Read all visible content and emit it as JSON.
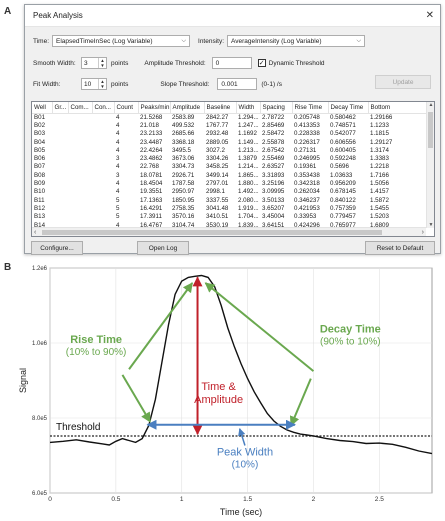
{
  "panels": {
    "a": "A",
    "b": "B"
  },
  "dialog": {
    "title": "Peak Analysis",
    "close": "✕",
    "time_label": "Time:",
    "time_value": "ElapsedTimeInSec (Log Variable)",
    "intensity_label": "Intensity:",
    "intensity_value": "AverageIntensity (Log Variable)",
    "smooth_width_label": "Smooth Width:",
    "smooth_width_value": "3",
    "smooth_width_units": "points",
    "amplitude_threshold_label": "Amplitude Threshold:",
    "amplitude_threshold_value": "0",
    "dynamic_threshold_label": "Dynamic Threshold",
    "dynamic_threshold_checked": true,
    "fit_width_label": "Fit Width:",
    "fit_width_value": "10",
    "fit_width_units": "points",
    "slope_threshold_label": "Slope Threshold:",
    "slope_threshold_value": "0.001",
    "slope_threshold_units": "(0-1) /s",
    "update_button": "Update",
    "configure_button": "Configure...",
    "open_log_button": "Open Log",
    "reset_button": "Reset to Default",
    "table": {
      "columns": [
        "Well",
        "Gr...",
        "Com...",
        "Con...",
        "Count",
        "Peaks/min",
        "Amplitude",
        "Baseline",
        "Width",
        "Spacing",
        "Rise Time",
        "Decay Time",
        "Bottom"
      ],
      "rows": [
        [
          "B01",
          "",
          "",
          "",
          "4",
          "21.5268",
          "2583.89",
          "2842.27",
          "1.294...",
          "2.78722",
          "0.205748",
          "0.580462",
          "1.29166"
        ],
        [
          "B02",
          "",
          "",
          "",
          "4",
          "21.018",
          "499.532",
          "1767.77",
          "1.247...",
          "2.85469",
          "0.413353",
          "0.748571",
          "1.1233"
        ],
        [
          "B03",
          "",
          "",
          "",
          "4",
          "23.2133",
          "2685.66",
          "2932.48",
          "1.1692",
          "2.58472",
          "0.228338",
          "0.542077",
          "1.1815"
        ],
        [
          "B04",
          "",
          "",
          "",
          "4",
          "23.4487",
          "3368.18",
          "2889.05",
          "1.149...",
          "2.55878",
          "0.226317",
          "0.606556",
          "1.29127"
        ],
        [
          "B05",
          "",
          "",
          "",
          "4",
          "22.4264",
          "3495.5",
          "3027.2",
          "1.213...",
          "2.67542",
          "0.27131",
          "0.600405",
          "1.3174"
        ],
        [
          "B06",
          "",
          "",
          "",
          "3",
          "23.4862",
          "3673.06",
          "3304.26",
          "1.3879",
          "2.55469",
          "0.246995",
          "0.592248",
          "1.3383"
        ],
        [
          "B07",
          "",
          "",
          "",
          "4",
          "22.768",
          "3304.73",
          "3458.25",
          "1.214...",
          "2.63527",
          "0.19361",
          "0.5696",
          "1.2218"
        ],
        [
          "B08",
          "",
          "",
          "",
          "3",
          "18.0781",
          "2926.71",
          "3499.14",
          "1.865...",
          "3.31893",
          "0.353438",
          "1.03633",
          "1.7166"
        ],
        [
          "B09",
          "",
          "",
          "",
          "4",
          "18.4504",
          "1787.58",
          "2797.01",
          "1.880...",
          "3.25196",
          "0.342318",
          "0.956209",
          "1.5056"
        ],
        [
          "B10",
          "",
          "",
          "",
          "4",
          "19.3551",
          "2950.97",
          "2998.1",
          "1.492...",
          "3.09995",
          "0.262034",
          "0.678145",
          "1.4157"
        ],
        [
          "B11",
          "",
          "",
          "",
          "5",
          "17.1363",
          "1850.95",
          "3337.55",
          "2.080...",
          "3.50133",
          "0.346237",
          "0.840122",
          "1.5872"
        ],
        [
          "B12",
          "",
          "",
          "",
          "5",
          "16.4291",
          "2758.35",
          "3041.48",
          "1.919...",
          "3.65207",
          "0.421953",
          "0.757359",
          "1.5455"
        ],
        [
          "B13",
          "",
          "",
          "",
          "5",
          "17.3911",
          "3570.16",
          "3410.51",
          "1.704...",
          "3.45004",
          "0.33953",
          "0.779457",
          "1.5203"
        ],
        [
          "B14",
          "",
          "",
          "",
          "4",
          "16.4767",
          "3104.74",
          "3530.19",
          "1.839...",
          "3.64151",
          "0.424296",
          "0.765977",
          "1.6809"
        ]
      ]
    }
  },
  "chart_data": {
    "type": "line",
    "xlabel": "Time (sec)",
    "ylabel": "Signal",
    "xlim": [
      0,
      2.9
    ],
    "ylim": [
      600000,
      1200000
    ],
    "x_ticks": [
      {
        "v": 0,
        "label": "0"
      },
      {
        "v": 0.5,
        "label": "0.5"
      },
      {
        "v": 1,
        "label": "1"
      },
      {
        "v": 1.5,
        "label": "1.5"
      },
      {
        "v": 2,
        "label": "2"
      },
      {
        "v": 2.5,
        "label": "2.5"
      }
    ],
    "y_ticks": [
      {
        "v": 600000,
        "label": "6.0e5"
      },
      {
        "v": 800000,
        "label": "8.0e5"
      },
      {
        "v": 1000000,
        "label": "1.0e6"
      },
      {
        "v": 1200000,
        "label": "1.2e6"
      }
    ],
    "grid": true,
    "series": [
      {
        "x": [
          0,
          0.1,
          0.2,
          0.3,
          0.4,
          0.45,
          0.5,
          0.55,
          0.6,
          0.65,
          0.7,
          0.75,
          0.8,
          0.85,
          0.9,
          0.95,
          1.0,
          1.05,
          1.1,
          1.15,
          1.2,
          1.25,
          1.3,
          1.35,
          1.4,
          1.45,
          1.5,
          1.55,
          1.6,
          1.65,
          1.7,
          1.75,
          1.8,
          1.85,
          1.9,
          1.95,
          2.0,
          2.1,
          2.2,
          2.3,
          2.4,
          2.5,
          2.6,
          2.7,
          2.8,
          2.9
        ],
        "y": [
          735000,
          738000,
          742000,
          736000,
          731000,
          728000,
          738000,
          745000,
          740000,
          735000,
          745000,
          780000,
          850000,
          950000,
          1050000,
          1130000,
          1165000,
          1175000,
          1178000,
          1180000,
          1175000,
          1150000,
          1100000,
          1040000,
          990000,
          945000,
          905000,
          870000,
          840000,
          812000,
          792000,
          778000,
          768000,
          762000,
          757000,
          755000,
          752000,
          745000,
          740000,
          737000,
          732000,
          733000,
          730000,
          722000,
          712000,
          705000
        ]
      }
    ],
    "threshold": {
      "value": 752000,
      "label": "Threshold"
    },
    "annotations": {
      "rise_time": "Rise Time",
      "rise_time_sub": "(10% to 90%)",
      "decay_time": "Decay Time",
      "decay_time_sub": "(90% to 10%)",
      "time_amplitude_1": "Time &",
      "time_amplitude_2": "Amplitude",
      "peak_width": "Peak Width",
      "peak_width_sub": "(10%)"
    },
    "colors": {
      "line": "#111111",
      "green": "#6aa84f",
      "red": "#c0202a",
      "blue": "#4a7fc0",
      "threshold": "#222222"
    }
  }
}
